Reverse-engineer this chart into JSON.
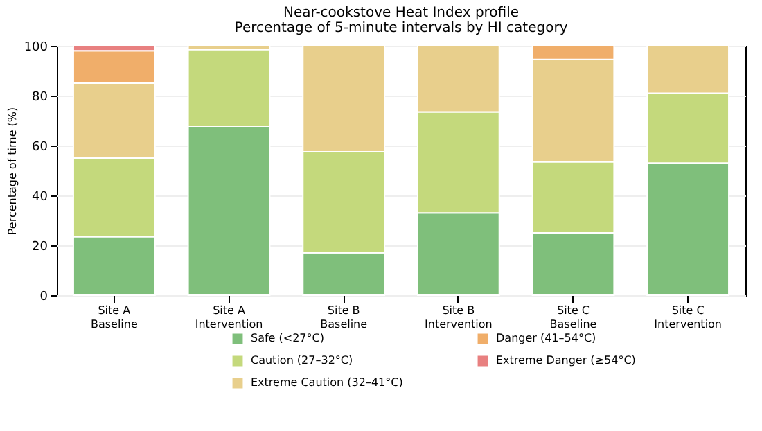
{
  "chart_data": {
    "type": "bar",
    "title": "Near-cookstove Heat Index profile",
    "subtitle": "Percentage of 5-minute intervals by HI category",
    "ylabel": "Percentage of time (%)",
    "categories": [
      "Site A\nBaseline",
      "Site A\nIntervention",
      "Site B\nBaseline",
      "Site B\nIntervention",
      "Site C\nBaseline",
      "Site C\nIntervention"
    ],
    "stacked": true,
    "series": [
      {
        "name": "Safe (<27°C)",
        "color": "#7fbf7b",
        "values": [
          23.5,
          67.5,
          17,
          33,
          25,
          53
        ]
      },
      {
        "name": "Caution (27–32°C)",
        "color": "#c4d97c",
        "values": [
          31.5,
          31,
          40.5,
          40.5,
          28.5,
          28
        ]
      },
      {
        "name": "Extreme Caution (32–41°C)",
        "color": "#e8cf8c",
        "values": [
          30,
          1.5,
          42.5,
          26.5,
          41,
          19
        ]
      },
      {
        "name": "Danger (41–54°C)",
        "color": "#f0ae6a",
        "values": [
          13,
          null,
          null,
          null,
          5.5,
          null
        ]
      },
      {
        "name": "Extreme Danger (≥54°C)",
        "color": "#e88080",
        "values": [
          2,
          null,
          null,
          null,
          null,
          null
        ]
      }
    ],
    "ylim": [
      0,
      100
    ],
    "yticks": [
      0,
      20,
      40,
      60,
      80,
      100
    ],
    "grid": "y",
    "legend": "bottom"
  }
}
